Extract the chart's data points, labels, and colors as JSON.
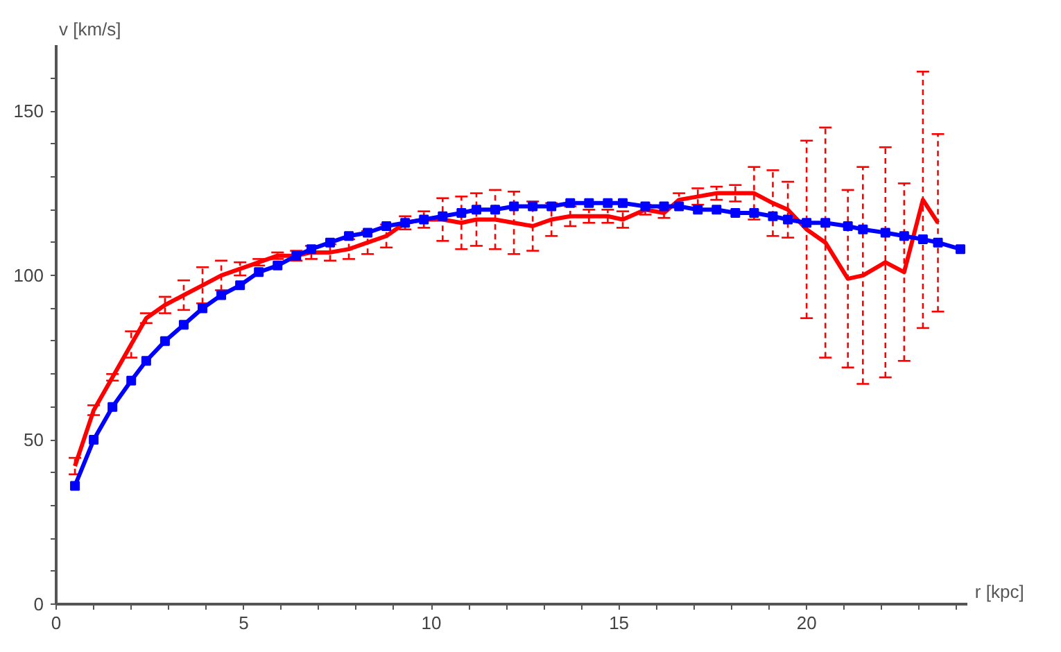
{
  "chart_data": {
    "type": "line",
    "xlabel": "r [kpc]",
    "ylabel": "v [km/s]",
    "xlim": [
      0,
      24.3
    ],
    "ylim": [
      0,
      170
    ],
    "xticks": [
      0,
      {
        "value": 1,
        "label": null
      },
      {
        "value": 2,
        "label": null
      },
      {
        "value": 3,
        "label": null
      },
      {
        "value": 4,
        "label": null
      },
      5,
      {
        "value": 6,
        "label": null
      },
      {
        "value": 7,
        "label": null
      },
      {
        "value": 8,
        "label": null
      },
      {
        "value": 9,
        "label": null
      },
      10,
      {
        "value": 11,
        "label": null
      },
      {
        "value": 12,
        "label": null
      },
      {
        "value": 13,
        "label": null
      },
      {
        "value": 14,
        "label": null
      },
      15,
      {
        "value": 16,
        "label": null
      },
      {
        "value": 17,
        "label": null
      },
      {
        "value": 18,
        "label": null
      },
      {
        "value": 19,
        "label": null
      },
      20,
      {
        "value": 21,
        "label": null
      },
      {
        "value": 22,
        "label": null
      },
      {
        "value": 23,
        "label": null
      },
      {
        "value": 24,
        "label": null
      }
    ],
    "yticks": [
      0,
      {
        "value": 10,
        "label": null
      },
      {
        "value": 20,
        "label": null
      },
      {
        "value": 30,
        "label": null
      },
      {
        "value": 40,
        "label": null
      },
      50,
      {
        "value": 60,
        "label": null
      },
      {
        "value": 70,
        "label": null
      },
      {
        "value": 80,
        "label": null
      },
      {
        "value": 90,
        "label": null
      },
      100,
      {
        "value": 110,
        "label": null
      },
      {
        "value": 120,
        "label": null
      },
      {
        "value": 130,
        "label": null
      },
      {
        "value": 140,
        "label": null
      },
      150,
      {
        "value": 160,
        "label": null
      }
    ],
    "grid": false,
    "series": [
      {
        "color": "#ff0000",
        "marker": "none",
        "line_style": "solid",
        "x": [
          0.5,
          1.0,
          1.5,
          2.0,
          2.4,
          2.9,
          3.4,
          3.9,
          4.4,
          4.9,
          5.4,
          5.9,
          6.4,
          6.8,
          7.3,
          7.8,
          8.3,
          8.8,
          9.3,
          9.8,
          10.3,
          10.8,
          11.2,
          11.7,
          12.2,
          12.7,
          13.2,
          13.7,
          14.2,
          14.7,
          15.1,
          15.7,
          16.2,
          16.6,
          17.1,
          17.6,
          18.1,
          18.6,
          19.1,
          19.5,
          20.0,
          20.5,
          21.1,
          21.5,
          22.1,
          22.6,
          23.1,
          23.5
        ],
        "values": [
          42,
          59,
          69,
          79,
          87,
          91,
          94,
          97,
          100,
          102,
          104,
          106,
          106,
          107,
          107,
          108,
          110,
          112,
          116,
          117,
          117,
          116,
          117,
          117,
          116,
          115,
          117,
          118,
          118,
          118,
          117,
          120,
          119,
          123,
          124,
          125,
          125,
          125,
          122,
          120,
          114,
          110,
          99,
          100,
          104,
          101,
          123,
          116
        ],
        "errors": [
          2.5,
          1.5,
          1,
          4,
          1.5,
          2.5,
          4.5,
          5.5,
          4.5,
          2,
          1,
          1,
          1.5,
          2,
          2.5,
          3,
          3.5,
          3.5,
          2,
          2.5,
          6.5,
          8,
          8,
          9,
          9.5,
          7.5,
          5,
          3,
          2,
          2,
          2.5,
          1.5,
          1.5,
          2,
          2.5,
          2,
          2.5,
          8,
          10,
          8.5,
          27,
          35,
          27,
          33,
          35,
          27,
          39,
          27
        ]
      },
      {
        "color": "#0000ff",
        "marker": "square",
        "line_style": "solid",
        "x": [
          0.5,
          1.0,
          1.5,
          2.0,
          2.4,
          2.9,
          3.4,
          3.9,
          4.4,
          4.9,
          5.4,
          5.9,
          6.4,
          6.8,
          7.3,
          7.8,
          8.3,
          8.8,
          9.3,
          9.8,
          10.3,
          10.8,
          11.2,
          11.7,
          12.2,
          12.7,
          13.2,
          13.7,
          14.2,
          14.7,
          15.1,
          15.7,
          16.2,
          16.6,
          17.1,
          17.6,
          18.1,
          18.6,
          19.1,
          19.5,
          20.0,
          20.5,
          21.1,
          21.5,
          22.1,
          22.6,
          23.1,
          23.5,
          24.1
        ],
        "values": [
          36,
          50,
          60,
          68,
          74,
          80,
          85,
          90,
          94,
          97,
          101,
          103,
          106,
          108,
          110,
          112,
          113,
          115,
          116,
          117,
          118,
          119,
          120,
          120,
          121,
          121,
          121,
          122,
          122,
          122,
          122,
          121,
          121,
          121,
          120,
          120,
          119,
          119,
          118,
          117,
          116,
          116,
          115,
          114,
          113,
          112,
          111,
          110,
          108
        ]
      }
    ]
  }
}
